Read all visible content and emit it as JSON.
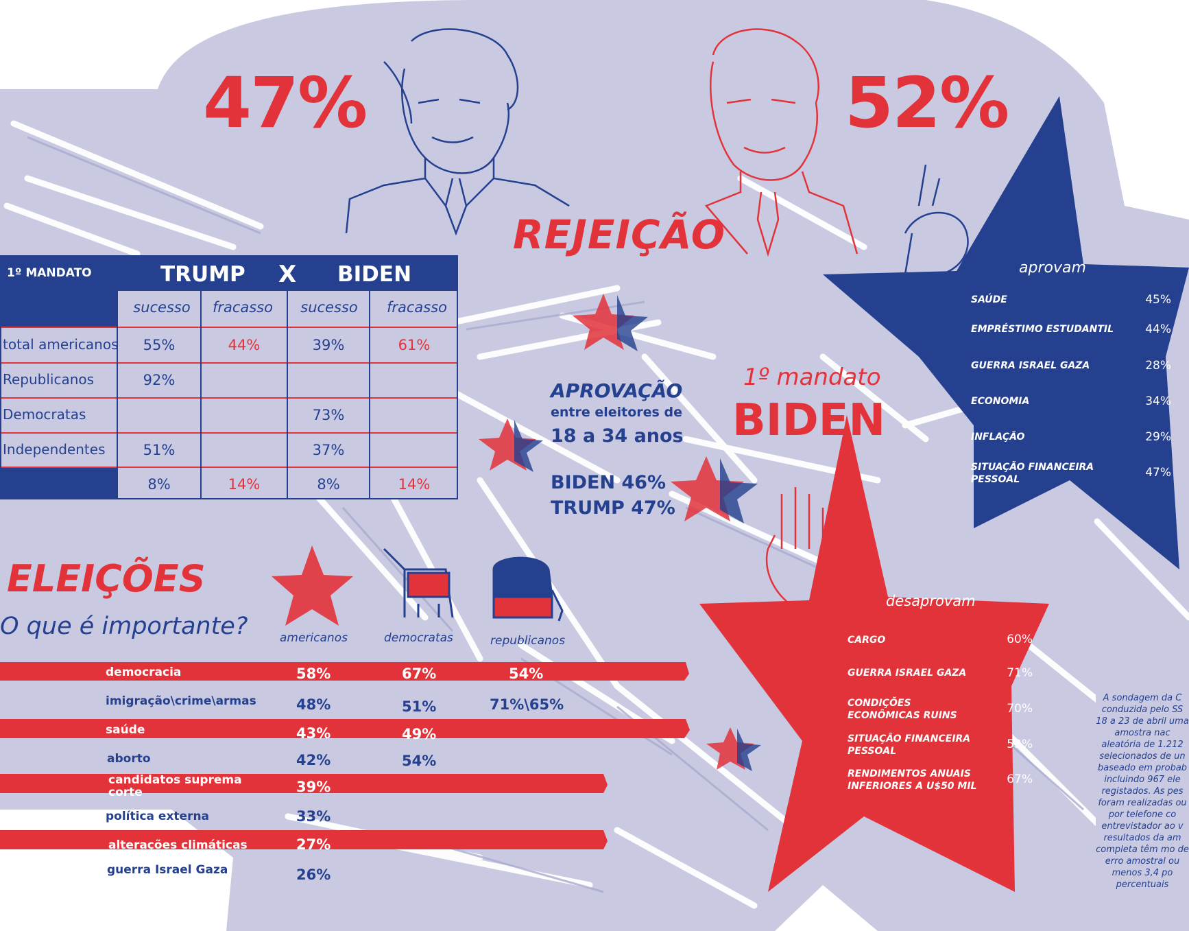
{
  "colors": {
    "red": "#e2323a",
    "blue": "#24408f",
    "lavender": "#c9cae2"
  },
  "rejection": {
    "trump_pct": "47%",
    "biden_pct": "52%",
    "title": "REJEIÇÃO"
  },
  "table": {
    "corner": "1º MANDATO",
    "trump": "TRUMP",
    "x": "X",
    "biden": "BIDEN",
    "subheaders": [
      "sucesso",
      "fracasso",
      "sucesso",
      "fracasso"
    ],
    "rows": [
      {
        "label": "total americanos",
        "cells": [
          "55%",
          "44%",
          "39%",
          "61%"
        ]
      },
      {
        "label": "Republicanos",
        "cells": [
          "92%",
          "",
          "",
          ""
        ]
      },
      {
        "label": "Democratas",
        "cells": [
          "",
          "",
          "73%",
          ""
        ]
      },
      {
        "label": "Independentes",
        "cells": [
          "51%",
          "",
          "37%",
          ""
        ]
      },
      {
        "label": "",
        "cells": [
          "8%",
          "14%",
          "8%",
          "14%"
        ]
      }
    ]
  },
  "youth": {
    "title": "APROVAÇÃO",
    "line2": "entre eleitores de",
    "line3": "18 a 34 anos",
    "biden": "BIDEN 46%",
    "trump": "TRUMP 47%"
  },
  "mandate": {
    "line1": "1º mandato",
    "line2": "BIDEN"
  },
  "approve": {
    "title": "aprovam",
    "items": [
      {
        "label": "SAÚDE",
        "value": "45%"
      },
      {
        "label": "EMPRÉSTIMO ESTUDANTIL",
        "value": "44%"
      },
      {
        "label": "GUERRA ISRAEL GAZA",
        "value": "28%"
      },
      {
        "label": "ECONOMIA",
        "value": "34%"
      },
      {
        "label": "INFLAÇÃO",
        "value": "29%"
      },
      {
        "label": "SITUAÇÃO FINANCEIRA PESSOAL",
        "value": "47%"
      }
    ]
  },
  "disapprove": {
    "title": "desaprovam",
    "items": [
      {
        "label": "CARGO",
        "value": "60%"
      },
      {
        "label": "GUERRA ISRAEL GAZA",
        "value": "71%"
      },
      {
        "label": "CONDIÇÕES ECONÔMICAS RUINS",
        "value": "70%"
      },
      {
        "label": "SITUAÇÃO FINANCEIRA PESSOAL",
        "value": "53%"
      },
      {
        "label": "RENDIMENTOS ANUAIS INFERIORES A U$50 MIL",
        "value": "67%"
      }
    ]
  },
  "elections": {
    "title": "ELEIÇÕES",
    "subtitle": "O que é importante?",
    "groups": [
      "americanos",
      "democratas",
      "republicanos"
    ],
    "issues": [
      {
        "label": "democracia",
        "values": [
          "58%",
          "67%",
          "54%"
        ]
      },
      {
        "label": "imigração\\crime\\armas",
        "values": [
          "48%",
          "51%",
          "71%\\65%"
        ]
      },
      {
        "label": "saúde",
        "values": [
          "43%",
          "49%",
          ""
        ]
      },
      {
        "label": "aborto",
        "values": [
          "42%",
          "54%",
          ""
        ]
      },
      {
        "label": "candidatos suprema corte",
        "values": [
          "39%",
          "",
          ""
        ]
      },
      {
        "label": "política externa",
        "values": [
          "33%",
          "",
          ""
        ]
      },
      {
        "label": "alterações climáticas",
        "values": [
          "27%",
          "",
          ""
        ]
      },
      {
        "label": "guerra Israel Gaza",
        "values": [
          "26%",
          "",
          ""
        ]
      }
    ]
  },
  "note": "A sondagem da C conduzida pelo SS 18 a 23 de abril uma amostra nac aleatória de 1.212 selecionados de un baseado em probab incluindo 967 ele registados. As pes foram realizadas ou por telefone co entrevistador ao v resultados da am completa têm mo de erro amostral ou menos 3,4 po percentuais"
}
